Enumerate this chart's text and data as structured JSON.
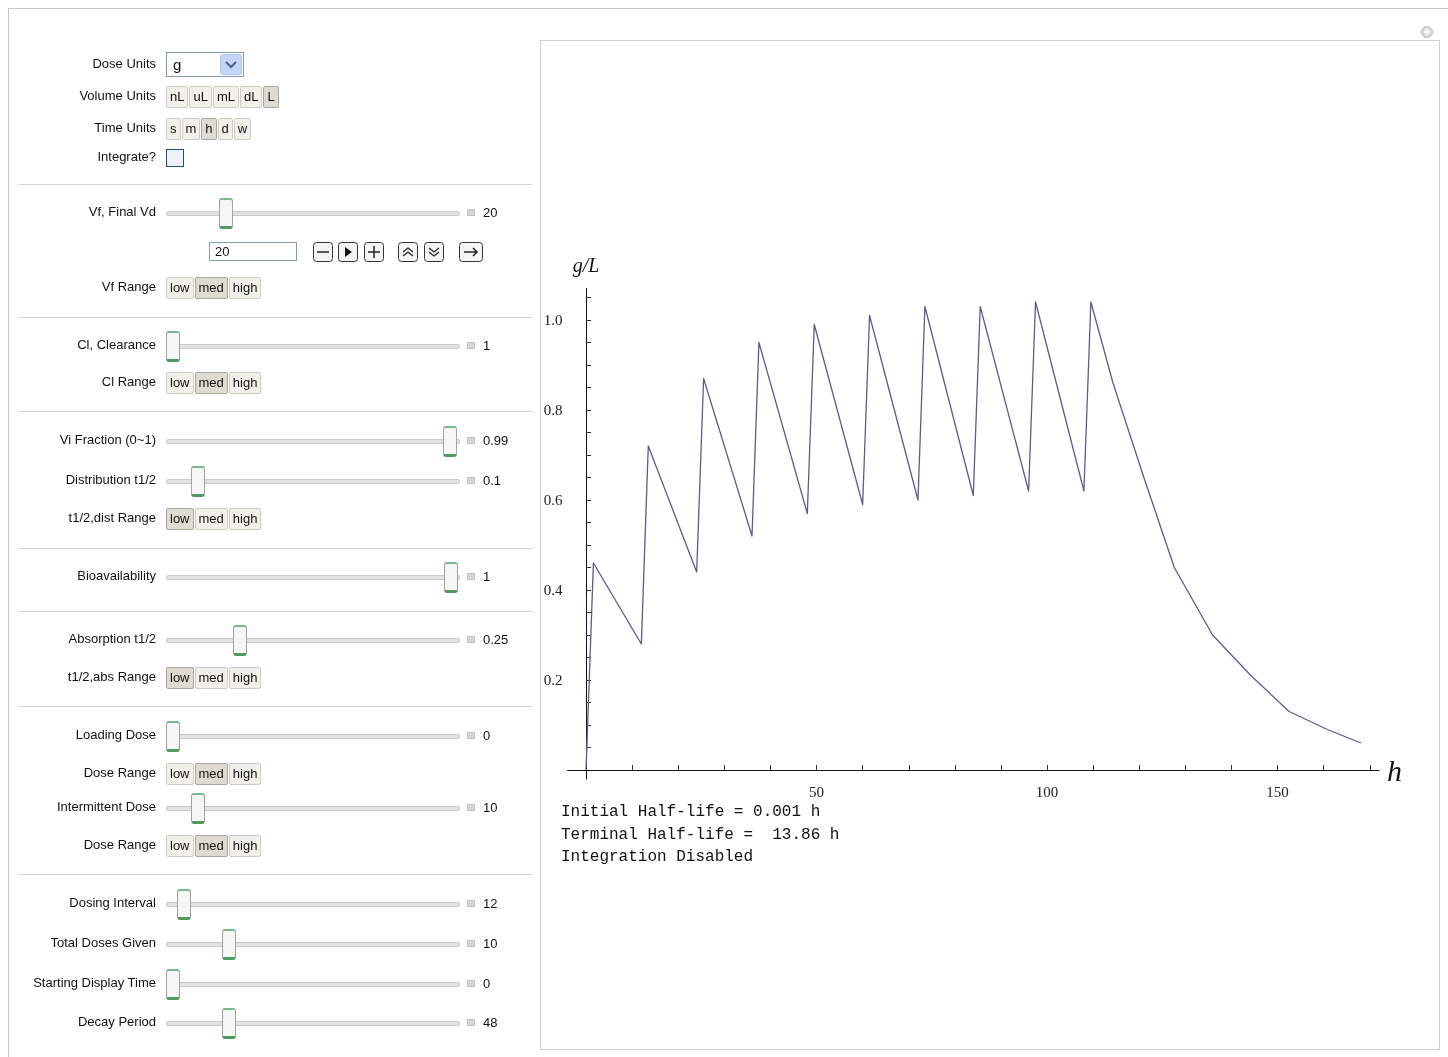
{
  "chart_data": {
    "type": "line",
    "xlabel": "h",
    "ylabel": "g/L",
    "x": [
      0,
      1.6,
      12,
      13.5,
      24,
      25.5,
      36,
      37.5,
      48,
      49.5,
      60,
      61.5,
      72,
      73.5,
      84,
      85.5,
      96,
      97.5,
      108,
      109.5,
      114.3,
      121,
      127.6,
      135.9,
      144.2,
      152.5,
      160.8,
      168.1
    ],
    "values": [
      0,
      0.46,
      0.28,
      0.72,
      0.44,
      0.87,
      0.52,
      0.95,
      0.57,
      0.99,
      0.59,
      1.01,
      0.6,
      1.03,
      0.61,
      1.03,
      0.62,
      1.04,
      0.62,
      1.04,
      0.86,
      0.65,
      0.45,
      0.3,
      0.21,
      0.13,
      0.09,
      0.06
    ],
    "color": "#5b5b8f",
    "marker": "none",
    "line_style": "solid",
    "xlim": [
      -4,
      172
    ],
    "ylim": [
      -0.02,
      1.07
    ],
    "xticks": [
      {
        "value": 10,
        "label": null
      },
      {
        "value": 20,
        "label": null
      },
      {
        "value": 30,
        "label": null
      },
      {
        "value": 40,
        "label": null
      },
      50,
      {
        "value": 60,
        "label": null
      },
      {
        "value": 70,
        "label": null
      },
      {
        "value": 80,
        "label": null
      },
      {
        "value": 90,
        "label": null
      },
      100,
      {
        "value": 110,
        "label": null
      },
      {
        "value": 120,
        "label": null
      },
      {
        "value": 130,
        "label": null
      },
      {
        "value": 140,
        "label": null
      },
      150,
      {
        "value": 160,
        "label": null
      },
      {
        "value": 170,
        "label": null
      }
    ],
    "yticks": [
      {
        "value": 0.05,
        "label": null
      },
      {
        "value": 0.1,
        "label": null
      },
      {
        "value": 0.15,
        "label": null
      },
      0.2,
      {
        "value": 0.25,
        "label": null
      },
      {
        "value": 0.3,
        "label": null
      },
      {
        "value": 0.35,
        "label": null
      },
      0.4,
      {
        "value": 0.45,
        "label": null
      },
      {
        "value": 0.5,
        "label": null
      },
      {
        "value": 0.55,
        "label": null
      },
      0.6,
      {
        "value": 0.65,
        "label": null
      },
      {
        "value": 0.7,
        "label": null
      },
      {
        "value": 0.75,
        "label": null
      },
      0.8,
      {
        "value": 0.85,
        "label": null
      },
      {
        "value": 0.9,
        "label": null
      },
      {
        "value": 0.95,
        "label": null
      },
      {
        "value": 1,
        "label": "1.0"
      },
      {
        "value": 1.05,
        "label": null
      }
    ],
    "annotations": [
      "Dose Units",
      "g",
      "Volume Units",
      "nL",
      "uL",
      "mL",
      "dL",
      "L",
      "Time Units",
      "s",
      "m",
      "h",
      "d",
      "w",
      "Integrate?",
      "Vf, Final Vd",
      "20",
      "20",
      "Vf Range",
      "low",
      "med",
      "high",
      "Cl, Clearance",
      "1",
      "Cl Range",
      "low",
      "med",
      "high",
      "Vi Fraction (0~1)",
      "0.99",
      "Distribution t1/2",
      "0.1",
      "t1/2,dist Range",
      "low",
      "med",
      "high",
      "Bioavailability",
      "1",
      "Absorption t1/2",
      "0.25",
      "t1/2,abs Range",
      "low",
      "med",
      "high",
      "Loading Dose",
      "0",
      "Dose Range",
      "low",
      "med",
      "high",
      "Intermittent Dose",
      "10",
      "Dose Range",
      "low",
      "med",
      "high",
      "Dosing Interval",
      "12",
      "Total Doses Given",
      "10",
      "Starting Display Time",
      "0",
      "Decay Period",
      "48",
      "Initial Half-life = 0.001 h",
      "Terminal Half-life =  13.86 h",
      "Integration Disabled"
    ]
  }
}
